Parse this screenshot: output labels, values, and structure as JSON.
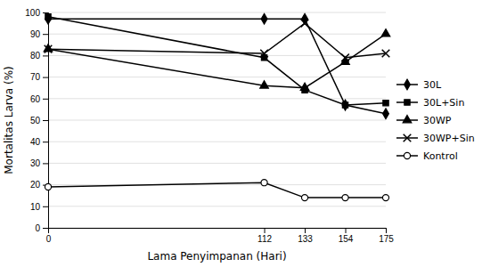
{
  "chart_data": {
    "type": "line",
    "x": [
      0,
      112,
      133,
      154,
      175
    ],
    "series": [
      {
        "name": "30L",
        "color": "#000000",
        "marker": "diamond",
        "values": [
          97,
          97,
          97,
          57,
          53
        ]
      },
      {
        "name": "30L+Sin",
        "color": "#000000",
        "marker": "square",
        "values": [
          98,
          79,
          64,
          57,
          58
        ]
      },
      {
        "name": "30WP",
        "color": "#000000",
        "marker": "triangle",
        "values": [
          83,
          66,
          65,
          77,
          90
        ]
      },
      {
        "name": "30WP+Sin",
        "color": "#000000",
        "marker": "x",
        "values": [
          83,
          81,
          95,
          79,
          81
        ]
      },
      {
        "name": "Kontrol",
        "color": "#000000",
        "marker": "circle",
        "values": [
          19,
          21,
          14,
          14,
          14
        ]
      }
    ],
    "x_label": "Lama Penyimpanan (Hari)",
    "y_label": "Mortalitas Larva (%)",
    "xlim": [
      0,
      175
    ],
    "xticks": [
      0,
      112,
      133,
      154,
      175
    ],
    "ylim": [
      0,
      100
    ],
    "yticks": [
      0,
      10,
      20,
      30,
      40,
      50,
      60,
      70,
      80,
      90,
      100
    ],
    "grid": true,
    "legend": "right"
  }
}
